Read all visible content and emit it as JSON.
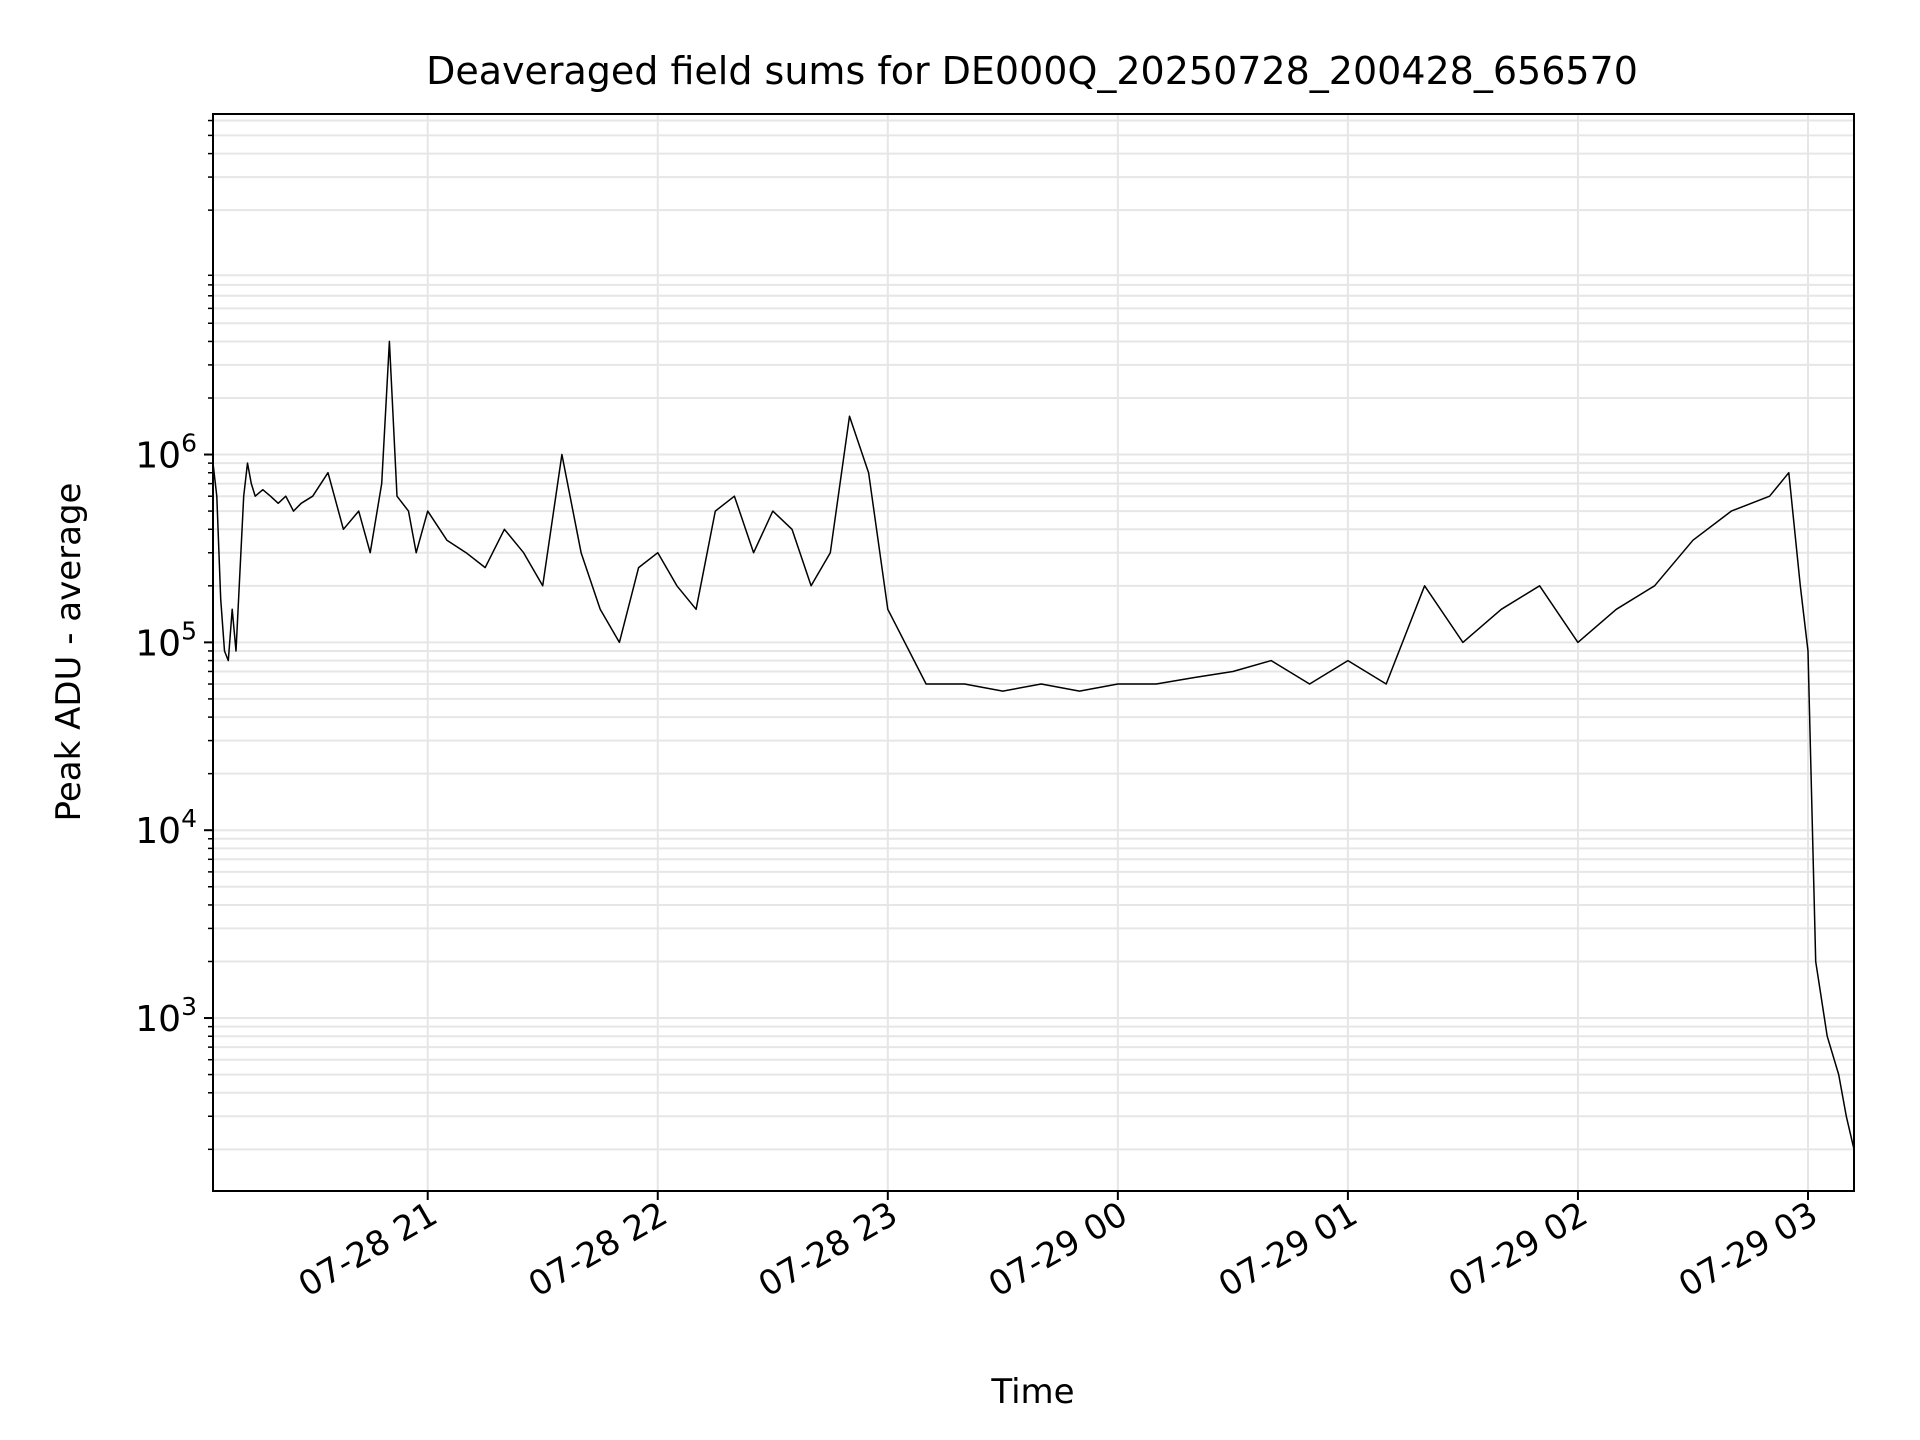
{
  "chart_data": {
    "type": "line",
    "title": "Deaveraged field sums for DE000Q_20250728_200428_656570",
    "xlabel": "Time",
    "ylabel": "Peak ADU - average",
    "yscale": "log",
    "ylim": [
      120,
      65000000
    ],
    "xlim": [
      "2025-07-28 20:04",
      "2025-07-29 03:12"
    ],
    "x_ticks": [
      {
        "t": "2025-07-28 21:00",
        "label": "07-28 21"
      },
      {
        "t": "2025-07-28 22:00",
        "label": "07-28 22"
      },
      {
        "t": "2025-07-28 23:00",
        "label": "07-28 23"
      },
      {
        "t": "2025-07-29 00:00",
        "label": "07-29 00"
      },
      {
        "t": "2025-07-29 01:00",
        "label": "07-29 01"
      },
      {
        "t": "2025-07-29 02:00",
        "label": "07-29 02"
      },
      {
        "t": "2025-07-29 03:00",
        "label": "07-29 03"
      }
    ],
    "y_ticks": [
      {
        "v": 1000,
        "base": "10",
        "exp": "3"
      },
      {
        "v": 10000,
        "base": "10",
        "exp": "4"
      },
      {
        "v": 100000,
        "base": "10",
        "exp": "5"
      },
      {
        "v": 1000000,
        "base": "10",
        "exp": "6"
      }
    ],
    "grid": true,
    "line_color": "#000000",
    "series": [
      {
        "x": [
          "2025-07-28 20:04",
          "2025-07-28 20:05",
          "2025-07-28 20:06",
          "2025-07-28 20:07",
          "2025-07-28 20:08",
          "2025-07-28 20:09",
          "2025-07-28 20:10",
          "2025-07-28 20:12",
          "2025-07-28 20:13",
          "2025-07-28 20:14",
          "2025-07-28 20:15",
          "2025-07-28 20:17",
          "2025-07-28 20:19",
          "2025-07-28 20:21",
          "2025-07-28 20:23",
          "2025-07-28 20:25",
          "2025-07-28 20:27",
          "2025-07-28 20:30",
          "2025-07-28 20:34",
          "2025-07-28 20:38",
          "2025-07-28 20:42",
          "2025-07-28 20:45",
          "2025-07-28 20:48",
          "2025-07-28 20:50",
          "2025-07-28 20:52",
          "2025-07-28 20:55",
          "2025-07-28 20:57",
          "2025-07-28 21:00",
          "2025-07-28 21:05",
          "2025-07-28 21:10",
          "2025-07-28 21:15",
          "2025-07-28 21:20",
          "2025-07-28 21:25",
          "2025-07-28 21:30",
          "2025-07-28 21:35",
          "2025-07-28 21:40",
          "2025-07-28 21:45",
          "2025-07-28 21:50",
          "2025-07-28 21:55",
          "2025-07-28 22:00",
          "2025-07-28 22:05",
          "2025-07-28 22:10",
          "2025-07-28 22:15",
          "2025-07-28 22:20",
          "2025-07-28 22:25",
          "2025-07-28 22:30",
          "2025-07-28 22:35",
          "2025-07-28 22:40",
          "2025-07-28 22:45",
          "2025-07-28 22:50",
          "2025-07-28 22:55",
          "2025-07-28 23:00",
          "2025-07-28 23:10",
          "2025-07-28 23:20",
          "2025-07-28 23:30",
          "2025-07-28 23:40",
          "2025-07-28 23:50",
          "2025-07-29 00:00",
          "2025-07-29 00:10",
          "2025-07-29 00:20",
          "2025-07-29 00:30",
          "2025-07-29 00:40",
          "2025-07-29 00:50",
          "2025-07-29 01:00",
          "2025-07-29 01:10",
          "2025-07-29 01:20",
          "2025-07-29 01:30",
          "2025-07-29 01:40",
          "2025-07-29 01:50",
          "2025-07-29 02:00",
          "2025-07-29 02:10",
          "2025-07-29 02:20",
          "2025-07-29 02:30",
          "2025-07-29 02:40",
          "2025-07-29 02:50",
          "2025-07-29 02:55",
          "2025-07-29 02:58",
          "2025-07-29 03:00",
          "2025-07-29 03:02",
          "2025-07-29 03:05",
          "2025-07-29 03:08",
          "2025-07-29 03:10",
          "2025-07-29 03:12"
        ],
        "y": [
          900000,
          600000,
          170000,
          90000,
          80000,
          150000,
          90000,
          600000,
          900000,
          700000,
          600000,
          650000,
          600000,
          550000,
          600000,
          500000,
          550000,
          600000,
          800000,
          400000,
          500000,
          300000,
          700000,
          4000000,
          600000,
          500000,
          300000,
          500000,
          350000,
          300000,
          250000,
          400000,
          300000,
          200000,
          1000000,
          300000,
          150000,
          100000,
          250000,
          300000,
          200000,
          150000,
          500000,
          600000,
          300000,
          500000,
          400000,
          200000,
          300000,
          1600000,
          800000,
          150000,
          60000,
          60000,
          55000,
          60000,
          55000,
          60000,
          60000,
          65000,
          70000,
          80000,
          60000,
          80000,
          60000,
          200000,
          100000,
          150000,
          200000,
          100000,
          150000,
          200000,
          350000,
          500000,
          600000,
          800000,
          200000,
          90000,
          2000,
          800,
          500,
          300,
          200
        ]
      }
    ]
  }
}
